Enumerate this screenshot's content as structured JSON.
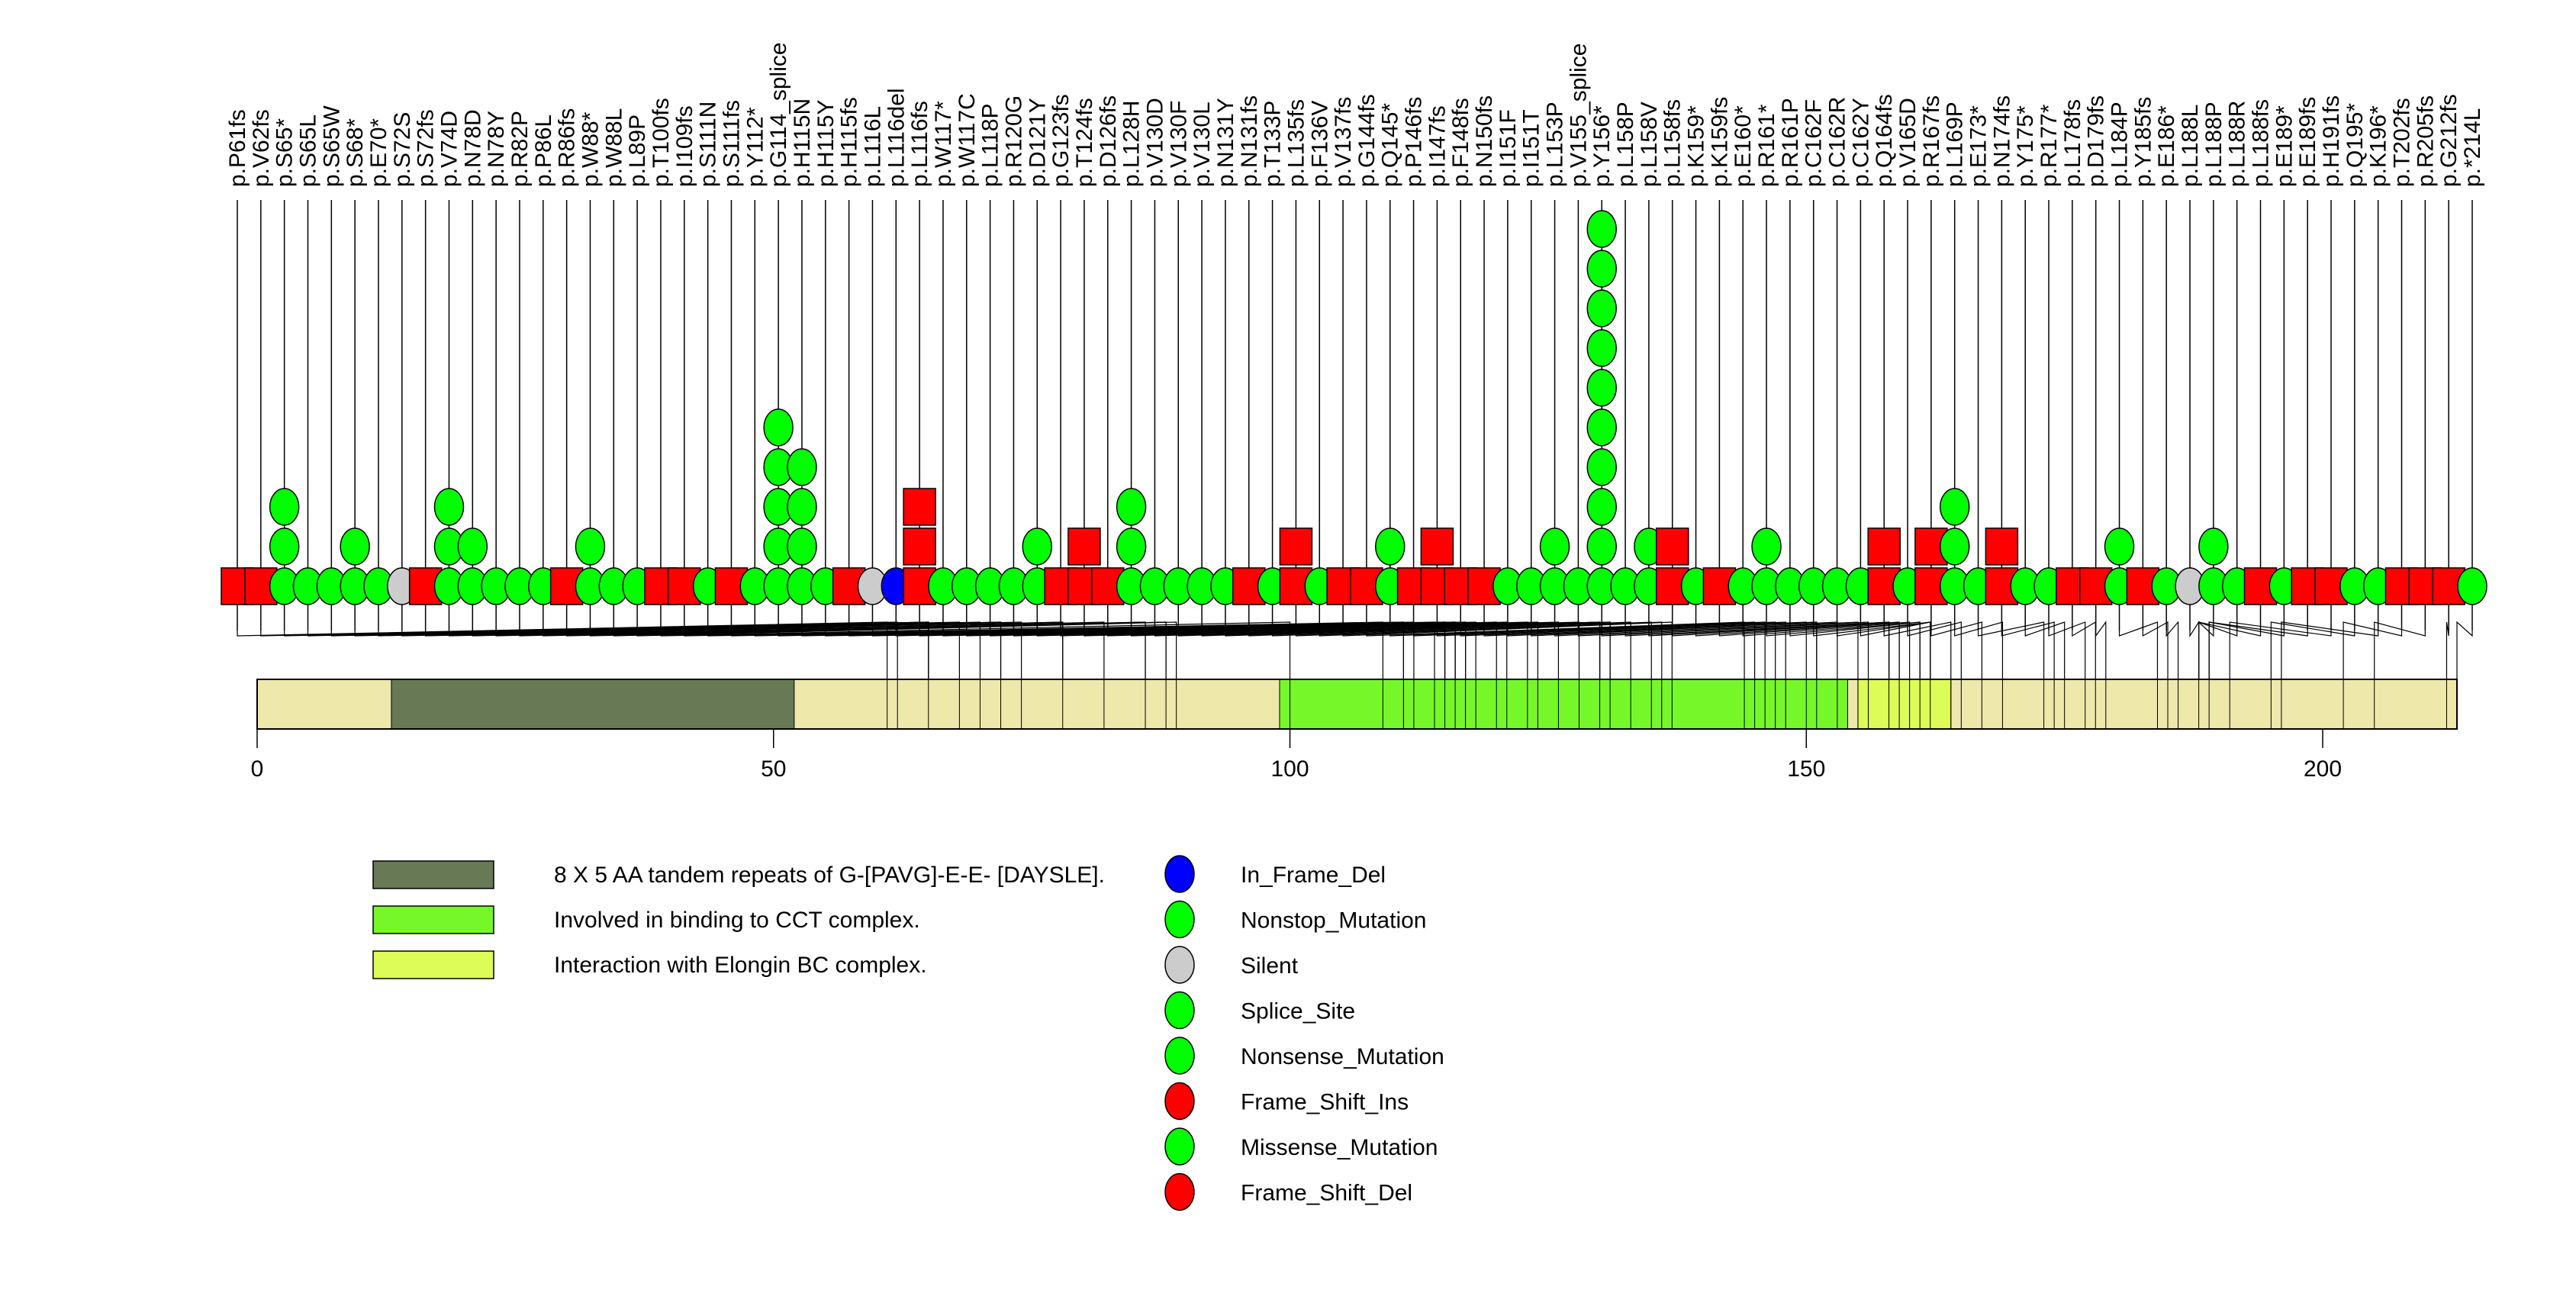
{
  "chart_data": {
    "type": "lollipop",
    "title": "",
    "xlabel": "",
    "ylabel": "",
    "protein_length": 213,
    "x_ticks": [
      0,
      50,
      100,
      150,
      200
    ],
    "x_tick_labels": [
      "0",
      "50",
      "100",
      "150",
      "200"
    ],
    "colors": {
      "backbone": "#EEE8AA",
      "In_Frame_Del": "#0000FF",
      "Nonstop_Mutation": "#00FF00",
      "Silent": "#CCCCCC",
      "Splice_Site": "#00FF00",
      "Nonsense_Mutation": "#00FF00",
      "Frame_Shift_Ins": "#FF0000",
      "Missense_Mutation": "#00FF00",
      "Frame_Shift_Del": "#FF0000"
    },
    "domains": [
      {
        "name": "8 X 5 AA tandem repeats of G-[PAVG]-E-E- [DAYSLE].",
        "start": 13,
        "end": 52,
        "color": "#677A55"
      },
      {
        "name": "Involved in binding to CCT complex.",
        "start": 99,
        "end": 154,
        "color": "#76F72A"
      },
      {
        "name": "Interaction with Elongin BC complex.",
        "start": 155,
        "end": 164,
        "color": "#DDFC57"
      }
    ],
    "mutations": [
      {
        "label": "p.P61fs",
        "pos": 61,
        "type": "Frame_Shift_Del",
        "count": 1
      },
      {
        "label": "p.V62fs",
        "pos": 62,
        "type": "Frame_Shift_Del",
        "count": 1
      },
      {
        "label": "p.S65*",
        "pos": 65,
        "type": "Nonsense_Mutation",
        "count": 3
      },
      {
        "label": "p.S65L",
        "pos": 65,
        "type": "Missense_Mutation",
        "count": 1
      },
      {
        "label": "p.S65W",
        "pos": 65,
        "type": "Missense_Mutation",
        "count": 1
      },
      {
        "label": "p.S68*",
        "pos": 68,
        "type": "Nonsense_Mutation",
        "count": 2
      },
      {
        "label": "p.E70*",
        "pos": 70,
        "type": "Nonsense_Mutation",
        "count": 1
      },
      {
        "label": "p.S72S",
        "pos": 72,
        "type": "Silent",
        "count": 1
      },
      {
        "label": "p.S72fs",
        "pos": 72,
        "type": "Frame_Shift_Del",
        "count": 1
      },
      {
        "label": "p.V74D",
        "pos": 74,
        "type": "Missense_Mutation",
        "count": 3
      },
      {
        "label": "p.N78D",
        "pos": 78,
        "type": "Missense_Mutation",
        "count": 2
      },
      {
        "label": "p.N78Y",
        "pos": 78,
        "type": "Missense_Mutation",
        "count": 1
      },
      {
        "label": "p.R82P",
        "pos": 82,
        "type": "Missense_Mutation",
        "count": 1
      },
      {
        "label": "p.P86L",
        "pos": 86,
        "type": "Missense_Mutation",
        "count": 1
      },
      {
        "label": "p.R86fs",
        "pos": 86,
        "type": "Frame_Shift_Del",
        "count": 1
      },
      {
        "label": "p.W88*",
        "pos": 88,
        "type": "Nonsense_Mutation",
        "count": 2
      },
      {
        "label": "p.W88L",
        "pos": 88,
        "type": "Missense_Mutation",
        "count": 1
      },
      {
        "label": "p.L89P",
        "pos": 89,
        "type": "Missense_Mutation",
        "count": 1
      },
      {
        "label": "p.T100fs",
        "pos": 100,
        "type": "Frame_Shift_Del",
        "count": 1
      },
      {
        "label": "p.I109fs",
        "pos": 109,
        "type": "Frame_Shift_Del",
        "count": 1
      },
      {
        "label": "p.S111N",
        "pos": 111,
        "type": "Missense_Mutation",
        "count": 1
      },
      {
        "label": "p.S111fs",
        "pos": 111,
        "type": "Frame_Shift_Del",
        "count": 1
      },
      {
        "label": "p.Y112*",
        "pos": 112,
        "type": "Nonsense_Mutation",
        "count": 1
      },
      {
        "label": "p.G114_splice",
        "pos": 114,
        "type": "Splice_Site",
        "count": 5
      },
      {
        "label": "p.H115N",
        "pos": 115,
        "type": "Missense_Mutation",
        "count": 4
      },
      {
        "label": "p.H115Y",
        "pos": 115,
        "type": "Missense_Mutation",
        "count": 1
      },
      {
        "label": "p.H115fs",
        "pos": 115,
        "type": "Frame_Shift_Del",
        "count": 1
      },
      {
        "label": "p.L116L",
        "pos": 116,
        "type": "Silent",
        "count": 1
      },
      {
        "label": "p.L116del",
        "pos": 116,
        "type": "In_Frame_Del",
        "count": 1
      },
      {
        "label": "p.L116fs",
        "pos": 116,
        "type": "Frame_Shift_Ins",
        "count": 3
      },
      {
        "label": "p.W117*",
        "pos": 117,
        "type": "Nonsense_Mutation",
        "count": 1
      },
      {
        "label": "p.W117C",
        "pos": 117,
        "type": "Missense_Mutation",
        "count": 1
      },
      {
        "label": "p.L118P",
        "pos": 118,
        "type": "Missense_Mutation",
        "count": 1
      },
      {
        "label": "p.R120G",
        "pos": 120,
        "type": "Missense_Mutation",
        "count": 1
      },
      {
        "label": "p.D121Y",
        "pos": 121,
        "type": "Missense_Mutation",
        "count": 2
      },
      {
        "label": "p.G123fs",
        "pos": 123,
        "type": "Frame_Shift_Del",
        "count": 1
      },
      {
        "label": "p.T124fs",
        "pos": 124,
        "type": "Frame_Shift_Ins",
        "count": 2
      },
      {
        "label": "p.D126fs",
        "pos": 126,
        "type": "Frame_Shift_Del",
        "count": 1
      },
      {
        "label": "p.L128H",
        "pos": 128,
        "type": "Missense_Mutation",
        "count": 3
      },
      {
        "label": "p.V130D",
        "pos": 130,
        "type": "Missense_Mutation",
        "count": 1
      },
      {
        "label": "p.V130F",
        "pos": 130,
        "type": "Missense_Mutation",
        "count": 1
      },
      {
        "label": "p.V130L",
        "pos": 130,
        "type": "Missense_Mutation",
        "count": 1
      },
      {
        "label": "p.N131Y",
        "pos": 131,
        "type": "Missense_Mutation",
        "count": 1
      },
      {
        "label": "p.N131fs",
        "pos": 131,
        "type": "Frame_Shift_Del",
        "count": 1
      },
      {
        "label": "p.T133P",
        "pos": 133,
        "type": "Missense_Mutation",
        "count": 1
      },
      {
        "label": "p.L135fs",
        "pos": 135,
        "type": "Frame_Shift_Ins",
        "count": 2
      },
      {
        "label": "p.F136V",
        "pos": 136,
        "type": "Missense_Mutation",
        "count": 1
      },
      {
        "label": "p.V137fs",
        "pos": 137,
        "type": "Frame_Shift_Del",
        "count": 1
      },
      {
        "label": "p.G144fs",
        "pos": 144,
        "type": "Frame_Shift_Del",
        "count": 1
      },
      {
        "label": "p.Q145*",
        "pos": 145,
        "type": "Nonsense_Mutation",
        "count": 2
      },
      {
        "label": "p.P146fs",
        "pos": 146,
        "type": "Frame_Shift_Del",
        "count": 1
      },
      {
        "label": "p.I147fs",
        "pos": 147,
        "type": "Frame_Shift_Ins",
        "count": 2
      },
      {
        "label": "p.F148fs",
        "pos": 148,
        "type": "Frame_Shift_Del",
        "count": 1
      },
      {
        "label": "p.N150fs",
        "pos": 150,
        "type": "Frame_Shift_Del",
        "count": 1
      },
      {
        "label": "p.I151F",
        "pos": 151,
        "type": "Missense_Mutation",
        "count": 1
      },
      {
        "label": "p.I151T",
        "pos": 151,
        "type": "Missense_Mutation",
        "count": 1
      },
      {
        "label": "p.L153P",
        "pos": 153,
        "type": "Missense_Mutation",
        "count": 2
      },
      {
        "label": "p.V155_splice",
        "pos": 155,
        "type": "Splice_Site",
        "count": 1
      },
      {
        "label": "p.Y156*",
        "pos": 156,
        "type": "Nonsense_Mutation",
        "count": 10
      },
      {
        "label": "p.L158P",
        "pos": 158,
        "type": "Missense_Mutation",
        "count": 1
      },
      {
        "label": "p.L158V",
        "pos": 158,
        "type": "Missense_Mutation",
        "count": 2
      },
      {
        "label": "p.L158fs",
        "pos": 158,
        "type": "Frame_Shift_Del",
        "count": 2
      },
      {
        "label": "p.K159*",
        "pos": 159,
        "type": "Nonsense_Mutation",
        "count": 1
      },
      {
        "label": "p.K159fs",
        "pos": 159,
        "type": "Frame_Shift_Del",
        "count": 1
      },
      {
        "label": "p.E160*",
        "pos": 160,
        "type": "Nonsense_Mutation",
        "count": 1
      },
      {
        "label": "p.R161*",
        "pos": 161,
        "type": "Nonsense_Mutation",
        "count": 2
      },
      {
        "label": "p.R161P",
        "pos": 161,
        "type": "Missense_Mutation",
        "count": 1
      },
      {
        "label": "p.C162F",
        "pos": 162,
        "type": "Missense_Mutation",
        "count": 1
      },
      {
        "label": "p.C162R",
        "pos": 162,
        "type": "Missense_Mutation",
        "count": 1
      },
      {
        "label": "p.C162Y",
        "pos": 162,
        "type": "Missense_Mutation",
        "count": 1
      },
      {
        "label": "p.Q164fs",
        "pos": 164,
        "type": "Frame_Shift_Ins",
        "count": 2
      },
      {
        "label": "p.V165D",
        "pos": 165,
        "type": "Missense_Mutation",
        "count": 1
      },
      {
        "label": "p.R167fs",
        "pos": 167,
        "type": "Frame_Shift_Ins",
        "count": 2
      },
      {
        "label": "p.L169P",
        "pos": 169,
        "type": "Missense_Mutation",
        "count": 3
      },
      {
        "label": "p.E173*",
        "pos": 173,
        "type": "Nonsense_Mutation",
        "count": 1
      },
      {
        "label": "p.N174fs",
        "pos": 174,
        "type": "Frame_Shift_Ins",
        "count": 2
      },
      {
        "label": "p.Y175*",
        "pos": 175,
        "type": "Nonsense_Mutation",
        "count": 1
      },
      {
        "label": "p.R177*",
        "pos": 177,
        "type": "Nonsense_Mutation",
        "count": 1
      },
      {
        "label": "p.L178fs",
        "pos": 178,
        "type": "Frame_Shift_Del",
        "count": 1
      },
      {
        "label": "p.D179fs",
        "pos": 179,
        "type": "Frame_Shift_Del",
        "count": 1
      },
      {
        "label": "p.L184P",
        "pos": 184,
        "type": "Missense_Mutation",
        "count": 2
      },
      {
        "label": "p.Y185fs",
        "pos": 185,
        "type": "Frame_Shift_Del",
        "count": 1
      },
      {
        "label": "p.E186*",
        "pos": 186,
        "type": "Nonsense_Mutation",
        "count": 1
      },
      {
        "label": "p.L188L",
        "pos": 188,
        "type": "Silent",
        "count": 1
      },
      {
        "label": "p.L188P",
        "pos": 188,
        "type": "Missense_Mutation",
        "count": 2
      },
      {
        "label": "p.L188R",
        "pos": 188,
        "type": "Missense_Mutation",
        "count": 1
      },
      {
        "label": "p.L188fs",
        "pos": 188,
        "type": "Frame_Shift_Del",
        "count": 1
      },
      {
        "label": "p.E189*",
        "pos": 189,
        "type": "Nonsense_Mutation",
        "count": 1
      },
      {
        "label": "p.E189fs",
        "pos": 189,
        "type": "Frame_Shift_Del",
        "count": 1
      },
      {
        "label": "p.H191fs",
        "pos": 191,
        "type": "Frame_Shift_Del",
        "count": 1
      },
      {
        "label": "p.Q195*",
        "pos": 195,
        "type": "Nonsense_Mutation",
        "count": 1
      },
      {
        "label": "p.K196*",
        "pos": 196,
        "type": "Nonsense_Mutation",
        "count": 1
      },
      {
        "label": "p.T202fs",
        "pos": 202,
        "type": "Frame_Shift_Del",
        "count": 1
      },
      {
        "label": "p.R205fs",
        "pos": 205,
        "type": "Frame_Shift_Del",
        "count": 1
      },
      {
        "label": "p.G212fs",
        "pos": 212,
        "type": "Frame_Shift_Del",
        "count": 1
      },
      {
        "label": "p.*214L",
        "pos": 213,
        "type": "Nonstop_Mutation",
        "count": 1
      }
    ],
    "legend_domains": [
      {
        "label": "8 X 5 AA tandem repeats of G-[PAVG]-E-E- [DAYSLE].",
        "color": "#677A55"
      },
      {
        "label": "Involved in binding to CCT complex.",
        "color": "#76F72A"
      },
      {
        "label": "Interaction with Elongin BC complex.",
        "color": "#DDFC57"
      }
    ],
    "legend_mutations": [
      {
        "label": "In_Frame_Del",
        "color": "#0000FF"
      },
      {
        "label": "Nonstop_Mutation",
        "color": "#00FF00"
      },
      {
        "label": "Silent",
        "color": "#CCCCCC"
      },
      {
        "label": "Splice_Site",
        "color": "#00FF00"
      },
      {
        "label": "Nonsense_Mutation",
        "color": "#00FF00"
      },
      {
        "label": "Frame_Shift_Ins",
        "color": "#FF0000"
      },
      {
        "label": "Missense_Mutation",
        "color": "#00FF00"
      },
      {
        "label": "Frame_Shift_Del",
        "color": "#FF0000"
      }
    ]
  }
}
